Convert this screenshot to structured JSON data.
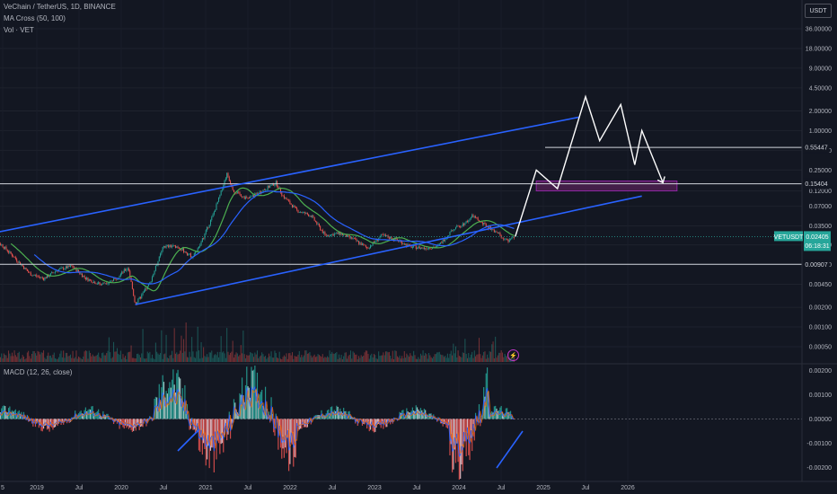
{
  "header": {
    "title_line": "VeChain / TetherUS, 1D, BINANCE",
    "indicator_ma": "MA Cross (50, 100)",
    "indicator_vol": "Vol · VET",
    "macd_label": "MACD (12, 26, close)",
    "currency": "USDT"
  },
  "colors": {
    "background": "#131722",
    "channel_line": "#2962ff",
    "projection": "#ffffff",
    "zone_fill": "#4a1f4e",
    "zone_border": "#9c27b0",
    "up_candle": "#26a69a",
    "down_candle": "#ef5350",
    "ma_fast": "#4caf50",
    "ma_slow": "#2962ff",
    "macd_line": "#2962ff",
    "signal_line": "#ff6d00",
    "symbol_badge": "#26a69a"
  },
  "chart_data": {
    "type": "candlestick",
    "symbol": "VETUSDT",
    "y_scale": "log",
    "price_ticks": [
      "36.00000",
      "18.00000",
      "9.00000",
      "4.50000",
      "2.00000",
      "1.00000",
      "0.50000",
      "0.25000",
      "0.12000",
      "0.07000",
      "0.03500",
      "0.01800",
      "0.00900",
      "0.00450",
      "0.00200",
      "0.00100",
      "0.00050"
    ],
    "price_labels": {
      "level_1": "0.55447",
      "level_2": "0.15404",
      "current_price": "0.02405",
      "current_symbol": "VETUSDT",
      "countdown": "06:18:31",
      "level_3": "0.00907"
    },
    "x_ticks": [
      "5",
      "2019",
      "Jul",
      "2020",
      "Jul",
      "2021",
      "Jul",
      "2022",
      "Jul",
      "2023",
      "Jul",
      "2024",
      "Jul",
      "2025",
      "Jul",
      "2026"
    ],
    "price_path": [
      [
        "2018-06",
        0.025
      ],
      [
        "2018-08",
        0.018
      ],
      [
        "2018-10",
        0.011
      ],
      [
        "2018-12",
        0.0065
      ],
      [
        "2019-02",
        0.0055
      ],
      [
        "2019-04",
        0.0075
      ],
      [
        "2019-06",
        0.0085
      ],
      [
        "2019-08",
        0.0055
      ],
      [
        "2019-10",
        0.0045
      ],
      [
        "2019-12",
        0.0052
      ],
      [
        "2020-02",
        0.0082
      ],
      [
        "2020-03",
        0.0022
      ],
      [
        "2020-05",
        0.0045
      ],
      [
        "2020-07",
        0.017
      ],
      [
        "2020-09",
        0.017
      ],
      [
        "2020-11",
        0.012
      ],
      [
        "2020-12",
        0.016
      ],
      [
        "2021-02",
        0.05
      ],
      [
        "2021-03",
        0.1
      ],
      [
        "2021-04",
        0.22
      ],
      [
        "2021-05",
        0.12
      ],
      [
        "2021-07",
        0.09
      ],
      [
        "2021-09",
        0.12
      ],
      [
        "2021-11",
        0.16
      ],
      [
        "2021-12",
        0.1
      ],
      [
        "2022-02",
        0.06
      ],
      [
        "2022-04",
        0.05
      ],
      [
        "2022-06",
        0.025
      ],
      [
        "2022-08",
        0.027
      ],
      [
        "2022-10",
        0.022
      ],
      [
        "2022-12",
        0.016
      ],
      [
        "2023-02",
        0.025
      ],
      [
        "2023-04",
        0.022
      ],
      [
        "2023-06",
        0.017
      ],
      [
        "2023-08",
        0.016
      ],
      [
        "2023-10",
        0.017
      ],
      [
        "2023-12",
        0.03
      ],
      [
        "2024-02",
        0.04
      ],
      [
        "2024-03",
        0.05
      ],
      [
        "2024-04",
        0.04
      ],
      [
        "2024-06",
        0.03
      ],
      [
        "2024-08",
        0.02
      ],
      [
        "2024-09",
        0.024
      ]
    ],
    "channel": {
      "upper": [
        [
          "2018-05",
          0.025
        ],
        [
          "2025-06",
          1.6
        ]
      ],
      "lower": [
        [
          "2020-03",
          0.0022
        ],
        [
          "2026-03",
          0.1
        ]
      ]
    },
    "projection": [
      [
        "2024-09",
        0.024
      ],
      [
        "2024-12",
        0.25
      ],
      [
        "2025-03",
        0.13
      ],
      [
        "2025-07",
        3.3
      ],
      [
        "2025-09",
        0.7
      ],
      [
        "2025-12",
        2.5
      ],
      [
        "2026-02",
        0.3
      ],
      [
        "2026-03",
        1.0
      ],
      [
        "2026-06",
        0.16
      ]
    ],
    "horizontal_levels": [
      0.55447,
      0.15404,
      0.00907
    ],
    "zone": {
      "from": "2024-12",
      "to": "2026-08",
      "low": 0.12,
      "high": 0.17
    },
    "macd_ticks": [
      "0.00200",
      "0.00100",
      "0.00000",
      "-0.00100",
      "-0.00200"
    ],
    "macd_range": [
      -0.0025,
      0.0022
    ]
  }
}
